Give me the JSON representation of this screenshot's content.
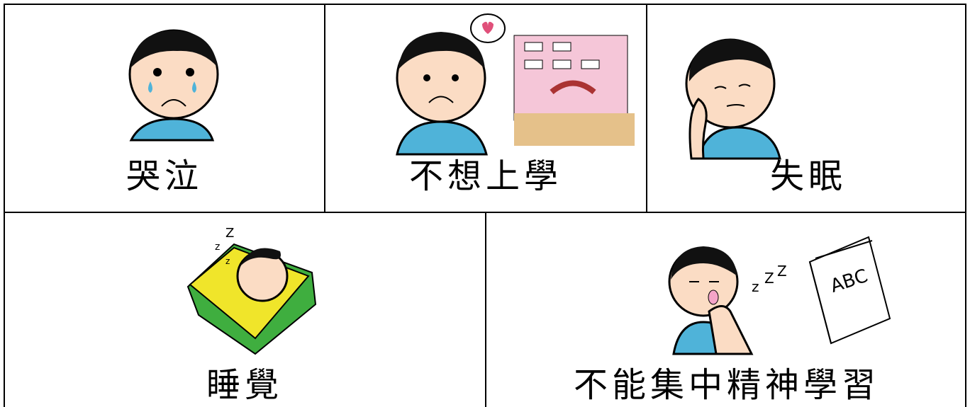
{
  "cards": [
    {
      "label": "哭泣"
    },
    {
      "label": "不想上學"
    },
    {
      "label": "失眠"
    },
    {
      "label": "睡覺",
      "sound_letters": [
        "Z",
        "z",
        "z"
      ]
    },
    {
      "label": "不能集中精神學習",
      "sound_letters": [
        "z",
        "Z",
        "Z"
      ],
      "book_title": "ABC"
    }
  ]
}
